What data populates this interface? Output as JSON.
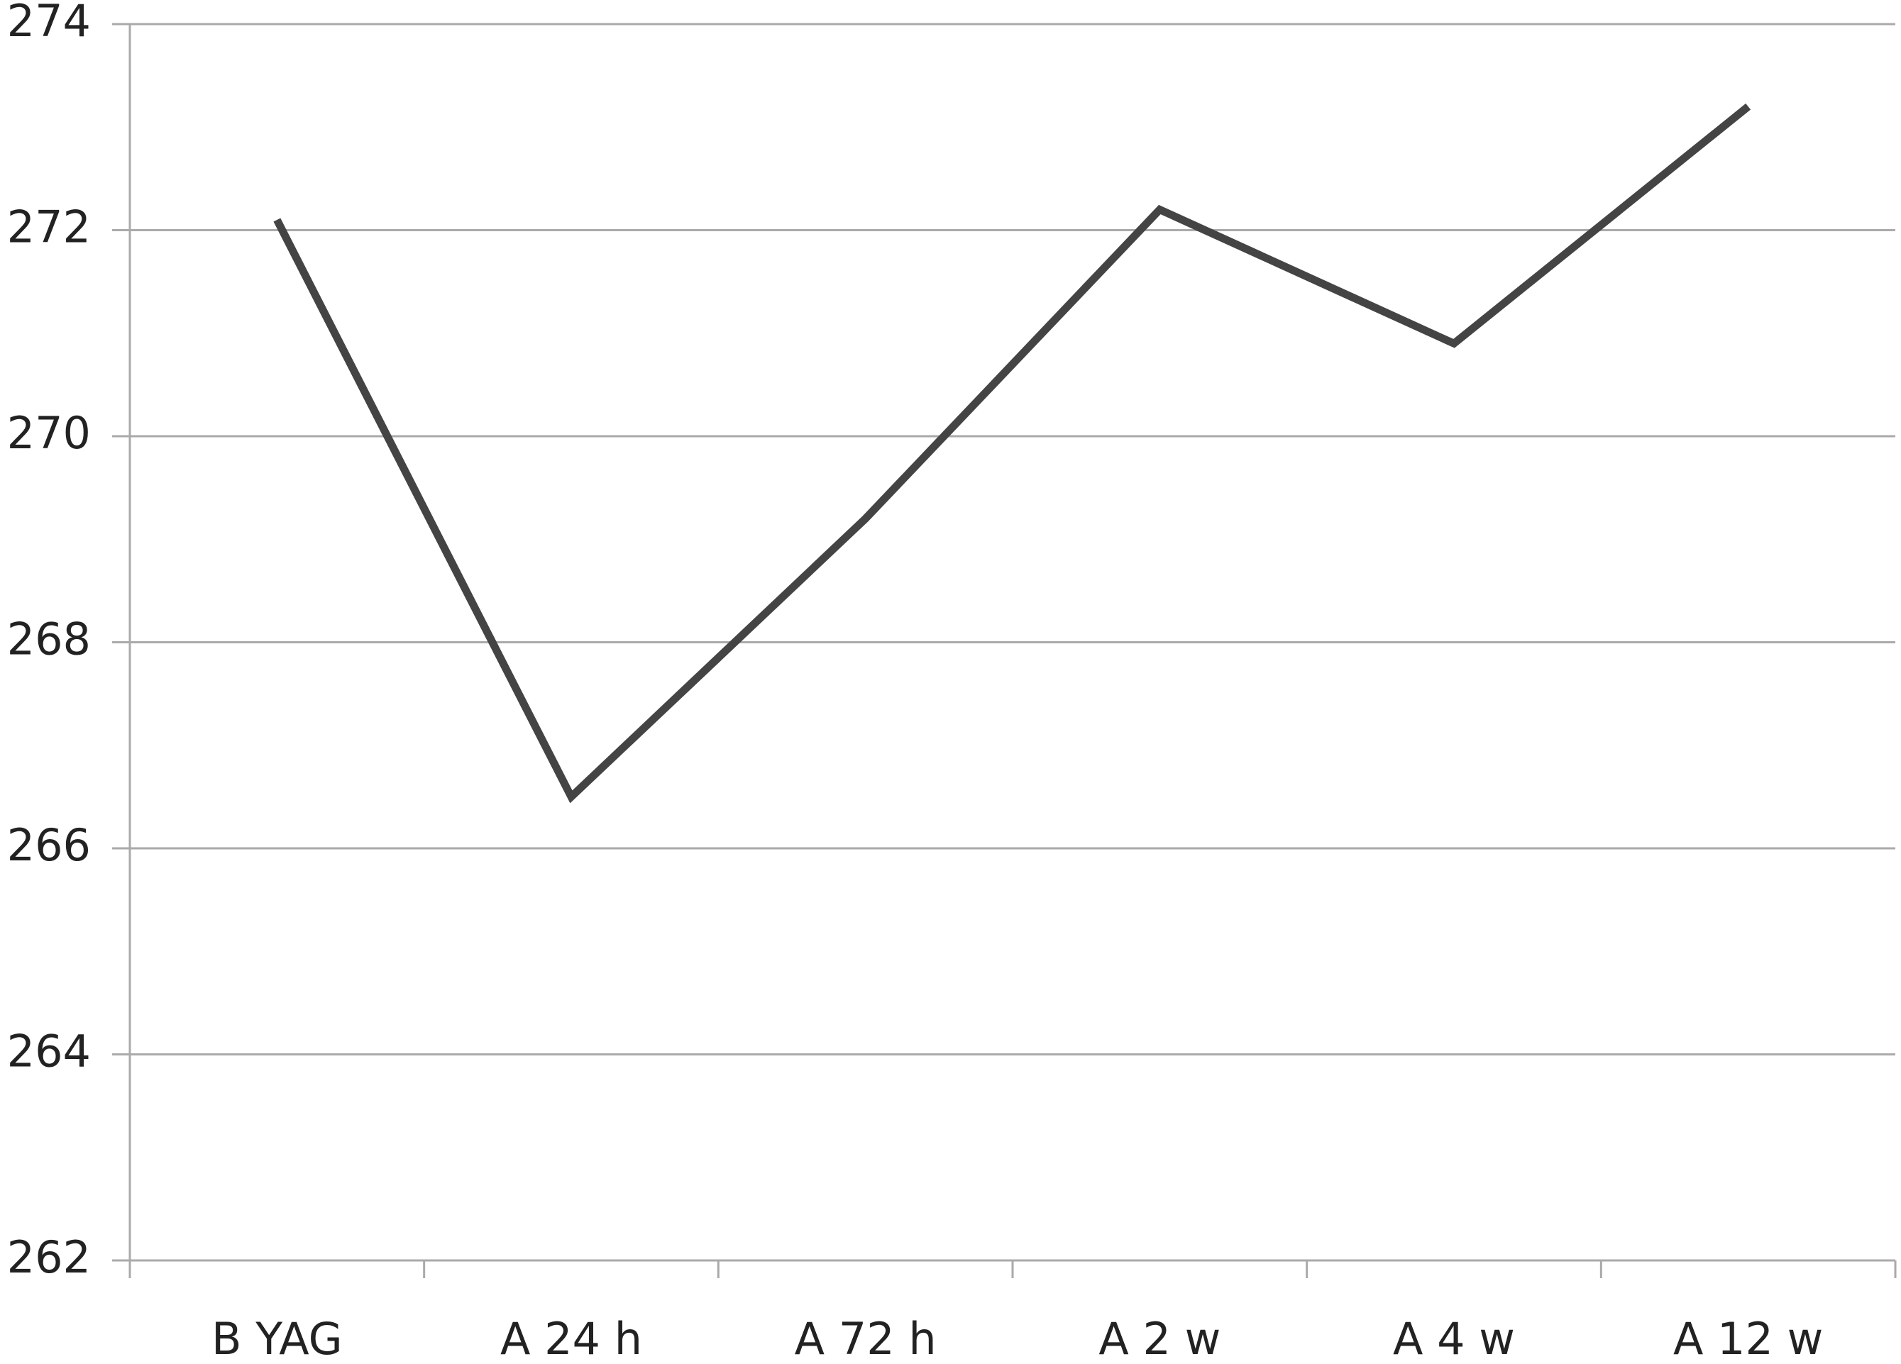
{
  "chart_data": {
    "type": "line",
    "categories": [
      "B YAG",
      "A 24 h",
      "A 72 h",
      "A 2 w",
      "A 4 w",
      "A 12 w"
    ],
    "series": [
      {
        "name": "series",
        "color": "#444444",
        "values": [
          272.1,
          266.5,
          269.2,
          272.2,
          270.9,
          273.2
        ]
      }
    ],
    "ylim": [
      262,
      274
    ],
    "yticks": [
      262,
      264,
      266,
      268,
      270,
      272,
      274
    ],
    "grid": true
  }
}
